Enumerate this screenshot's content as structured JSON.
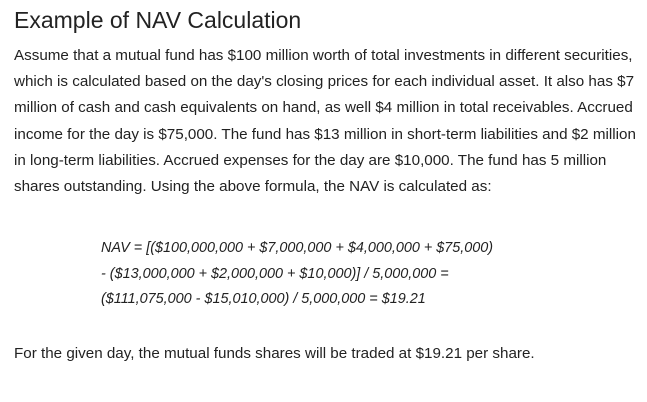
{
  "article": {
    "heading": "Example of NAV Calculation",
    "intro": "Assume that a mutual fund has $100 million worth of total investments in different securities, which is calculated based on the day's closing prices for each individual asset. It also has $7 million of cash and cash equivalents on hand, as well $4 million in total receivables. Accrued income for the day is $75,000. The fund has $13 million in short-term liabilities and $2 million in long-term liabilities. Accrued expenses for the day are $10,000. The fund has 5 million shares outstanding. Using the above formula, the NAV is calculated as:",
    "formula": {
      "line1": "NAV = [($100,000,000 + $7,000,000 + $4,000,000 + $75,000)",
      "line2": "- ($13,000,000 + $2,000,000 + $10,000)] / 5,000,000 =",
      "line3": "($111,075,000 - $15,010,000) / 5,000,000 = $19.21"
    },
    "conclusion": "For the given day, the mutual funds shares will be traded at $19.21 per share."
  }
}
